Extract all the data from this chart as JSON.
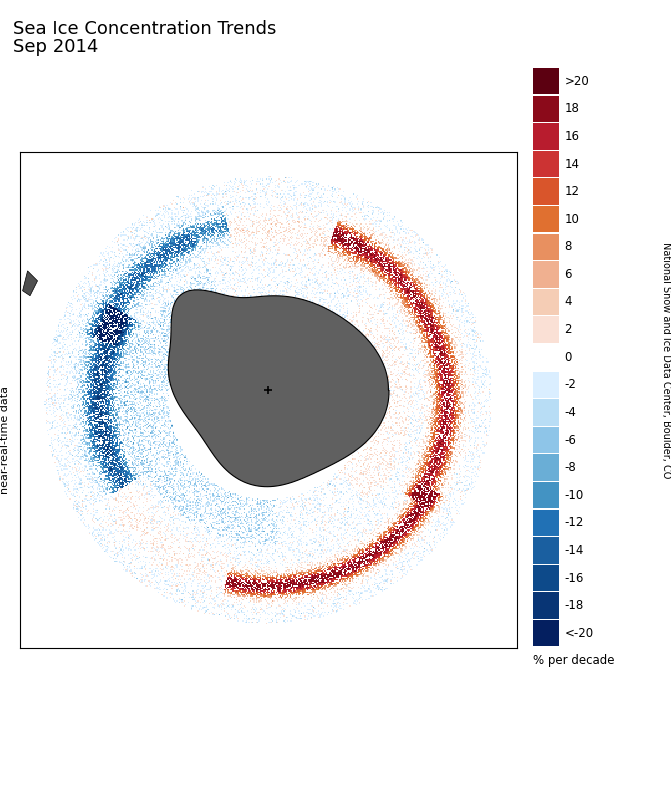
{
  "title_line1": "Sea Ice Concentration Trends",
  "title_line2": "Sep 2014",
  "colorbar_label": "% per decade",
  "side_label_right": "National Snow and Ice Data Center, Boulder, CO",
  "side_label_left": "near-real-time data",
  "legend_labels": [
    ">20",
    "18",
    "16",
    "14",
    "12",
    "10",
    "8",
    "6",
    "4",
    "2",
    "0",
    "-2",
    "-4",
    "-6",
    "-8",
    "-10",
    "-12",
    "-14",
    "-16",
    "-18",
    "<-20"
  ],
  "legend_colors_warm": [
    "#5c0011",
    "#8b0a1a",
    "#b81c2e",
    "#cc3333",
    "#d9552b",
    "#e07030",
    "#e89060",
    "#f0b090",
    "#f5cdb5",
    "#fae0d5"
  ],
  "legend_colors_cool": [
    "#daeeff",
    "#b8ddf5",
    "#8ec5e8",
    "#6aaed6",
    "#4393c3",
    "#2171b5",
    "#1a5fa0",
    "#0d4a8a",
    "#083575",
    "#041f60"
  ],
  "background_color": "#ffffff",
  "map_bg": "#ffffff",
  "antarctica_color": "#606060",
  "land_color": "#404040",
  "figsize": [
    6.71,
    8.0
  ],
  "dpi": 100
}
